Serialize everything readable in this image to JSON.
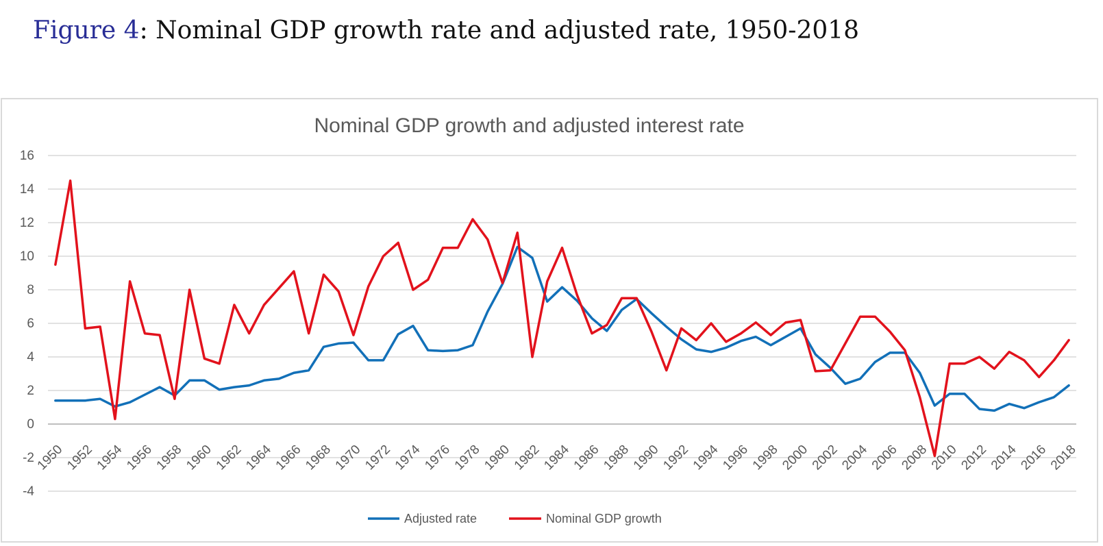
{
  "figure_title": {
    "label": "Figure 4",
    "rest": ": Nominal GDP growth rate and adjusted rate, 1950-2018"
  },
  "colors": {
    "navy": "#282d96",
    "red": "#e2121c",
    "blue": "#1270b8",
    "grid": "#d9d9d9",
    "axis": "#bfbfbf",
    "border": "#d9d9d9",
    "text": "#595959"
  },
  "chart_data": {
    "type": "line",
    "title": "Nominal GDP growth and adjusted interest rate",
    "xlabel": "",
    "ylabel": "",
    "ylim": [
      -4,
      16
    ],
    "y_ticks": [
      -4,
      -2,
      0,
      2,
      4,
      6,
      8,
      10,
      12,
      14,
      16
    ],
    "grid": true,
    "legend_position": "bottom",
    "x_label_interval": 2,
    "x": [
      1950,
      1951,
      1952,
      1953,
      1954,
      1955,
      1956,
      1957,
      1958,
      1959,
      1960,
      1961,
      1962,
      1963,
      1964,
      1965,
      1966,
      1967,
      1968,
      1969,
      1970,
      1971,
      1972,
      1973,
      1974,
      1975,
      1976,
      1977,
      1978,
      1979,
      1980,
      1981,
      1982,
      1983,
      1984,
      1985,
      1986,
      1987,
      1988,
      1989,
      1990,
      1991,
      1992,
      1993,
      1994,
      1995,
      1996,
      1997,
      1998,
      1999,
      2000,
      2001,
      2002,
      2003,
      2004,
      2005,
      2006,
      2007,
      2008,
      2009,
      2010,
      2011,
      2012,
      2013,
      2014,
      2015,
      2016,
      2017,
      2018
    ],
    "series": [
      {
        "name": "Adjusted rate",
        "color": "#1270b8",
        "values": [
          1.4,
          1.4,
          1.4,
          1.5,
          1.05,
          1.3,
          1.75,
          2.2,
          1.7,
          2.6,
          2.6,
          2.05,
          2.2,
          2.3,
          2.6,
          2.7,
          3.05,
          3.2,
          4.6,
          4.8,
          4.85,
          3.8,
          3.8,
          5.35,
          5.85,
          4.4,
          4.35,
          4.4,
          4.7,
          6.7,
          8.35,
          10.55,
          9.9,
          7.3,
          8.15,
          7.35,
          6.3,
          5.55,
          6.8,
          7.45,
          6.6,
          5.8,
          5.05,
          4.45,
          4.3,
          4.55,
          4.95,
          5.2,
          4.7,
          5.2,
          5.7,
          4.15,
          3.35,
          2.4,
          2.7,
          3.7,
          4.25,
          4.25,
          3.05,
          1.1,
          1.8,
          1.8,
          0.9,
          0.8,
          1.2,
          0.95,
          1.3,
          1.6,
          2.3
        ]
      },
      {
        "name": "Nominal GDP growth",
        "color": "#e2121c",
        "values": [
          9.5,
          14.5,
          5.7,
          5.8,
          0.3,
          8.5,
          5.4,
          5.3,
          1.5,
          8.0,
          3.9,
          3.6,
          7.1,
          5.4,
          7.1,
          8.1,
          9.1,
          5.4,
          8.9,
          7.9,
          5.3,
          8.2,
          10.0,
          10.8,
          8.0,
          8.6,
          10.5,
          10.5,
          12.2,
          11.0,
          8.4,
          11.4,
          4.0,
          8.5,
          10.5,
          7.7,
          5.4,
          5.9,
          7.5,
          7.5,
          5.5,
          3.2,
          5.7,
          5.0,
          6.0,
          4.9,
          5.4,
          6.05,
          5.3,
          6.05,
          6.2,
          3.15,
          3.2,
          4.8,
          6.4,
          6.4,
          5.5,
          4.4,
          1.6,
          -1.9,
          3.6,
          3.6,
          4.0,
          3.3,
          4.3,
          3.8,
          2.8,
          3.8,
          5.0
        ]
      }
    ]
  }
}
